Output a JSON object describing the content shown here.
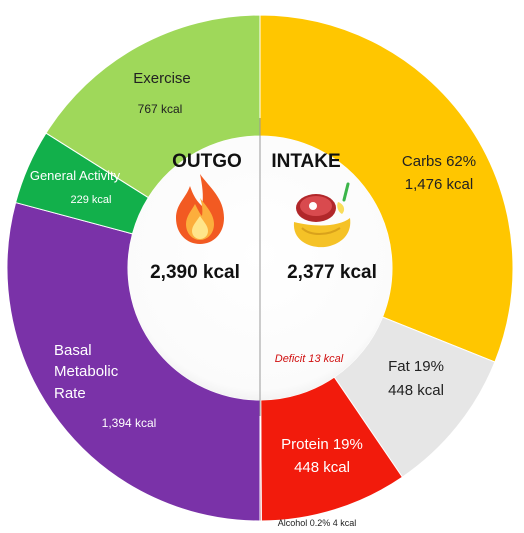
{
  "chart_data": {
    "type": "pie",
    "variant": "split donut",
    "outgo": {
      "title": "OUTGO",
      "total": "2,390 kcal",
      "total_value": 2390,
      "icon": "fire-icon",
      "segments": [
        {
          "name": "Basal Metabolic Rate",
          "label_lines": [
            "Basal",
            "Metabolic",
            "Rate"
          ],
          "kcal_label": "1,394 kcal",
          "value": 1394,
          "color": "#7a32a8"
        },
        {
          "name": "General Activity",
          "label_lines": [
            "General Activity"
          ],
          "kcal_label": "229 kcal",
          "value": 229,
          "color": "#12b04b"
        },
        {
          "name": "Exercise",
          "label_lines": [
            "Exercise"
          ],
          "kcal_label": "767 kcal",
          "value": 767,
          "color": "#9fd85a"
        }
      ]
    },
    "intake": {
      "title": "INTAKE",
      "total": "2,377 kcal",
      "total_value": 2377,
      "icon": "food-icon",
      "segments": [
        {
          "name": "Carbs",
          "label_lines": [
            "Carbs 62%",
            "1,476 kcal"
          ],
          "value": 1476,
          "percent": 62,
          "color": "#ffc600"
        },
        {
          "name": "Fat",
          "label_lines": [
            "Fat 19%",
            "448 kcal"
          ],
          "value": 448,
          "percent": 19,
          "color": "#e6e6e6"
        },
        {
          "name": "Protein",
          "label_lines": [
            "Protein 19%",
            "448 kcal"
          ],
          "value": 448,
          "percent": 19,
          "color": "#f21b0c"
        },
        {
          "name": "Alcohol",
          "label_lines": [
            "Alcohol 0.2% 4 kcal"
          ],
          "value": 4,
          "percent": 0.2,
          "color": "#a01818"
        }
      ]
    },
    "deficit_label": "Deficit 13 kcal",
    "deficit_value": 13,
    "deficit_color": "#d01010"
  }
}
